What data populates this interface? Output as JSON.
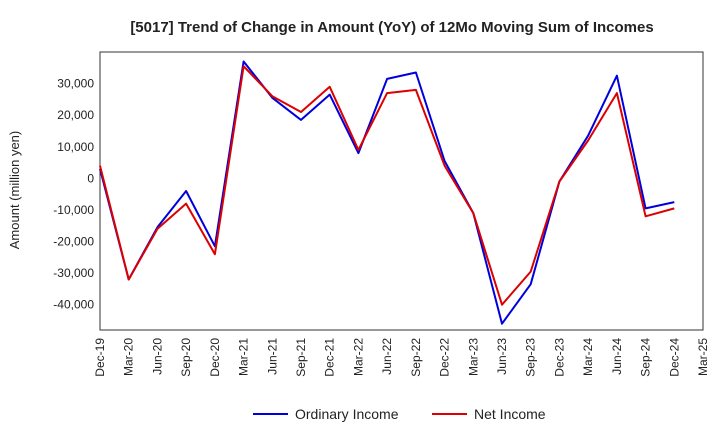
{
  "chart_data": {
    "type": "line",
    "title": "[5017]  Trend of Change in Amount (YoY) of 12Mo Moving Sum of Incomes",
    "xlabel": "",
    "ylabel": "Amount (million yen)",
    "ylim": [
      -48000,
      40000
    ],
    "yticks": [
      -40000,
      -30000,
      -20000,
      -10000,
      0,
      10000,
      20000,
      30000
    ],
    "ytick_labels": [
      "-40,000",
      "-30,000",
      "-20,000",
      "-10,000",
      "0",
      "10,000",
      "20,000",
      "30,000"
    ],
    "categories": [
      "Dec-19",
      "Mar-20",
      "Jun-20",
      "Sep-20",
      "Dec-20",
      "Mar-21",
      "Jun-21",
      "Sep-21",
      "Dec-21",
      "Mar-22",
      "Jun-22",
      "Sep-22",
      "Dec-22",
      "Mar-23",
      "Jun-23",
      "Sep-23",
      "Dec-23",
      "Mar-24",
      "Jun-24",
      "Sep-24",
      "Dec-24",
      "Mar-25"
    ],
    "grid": true,
    "legend_position": "bottom",
    "series": [
      {
        "name": "Ordinary Income",
        "color": "#0000dd",
        "values": [
          3000,
          -32000,
          -15500,
          -4000,
          -21500,
          37000,
          25500,
          18500,
          26500,
          8000,
          31500,
          33500,
          5500,
          -11000,
          -46000,
          -33500,
          -1000,
          13500,
          32500,
          -9500,
          -7500,
          null
        ]
      },
      {
        "name": "Net Income",
        "color": "#dd0000",
        "values": [
          4000,
          -32000,
          -16000,
          -8000,
          -24000,
          35500,
          26000,
          21000,
          29000,
          9000,
          27000,
          28000,
          4000,
          -11000,
          -40000,
          -29500,
          -1000,
          12000,
          27000,
          -12000,
          -9500,
          null
        ]
      }
    ]
  }
}
